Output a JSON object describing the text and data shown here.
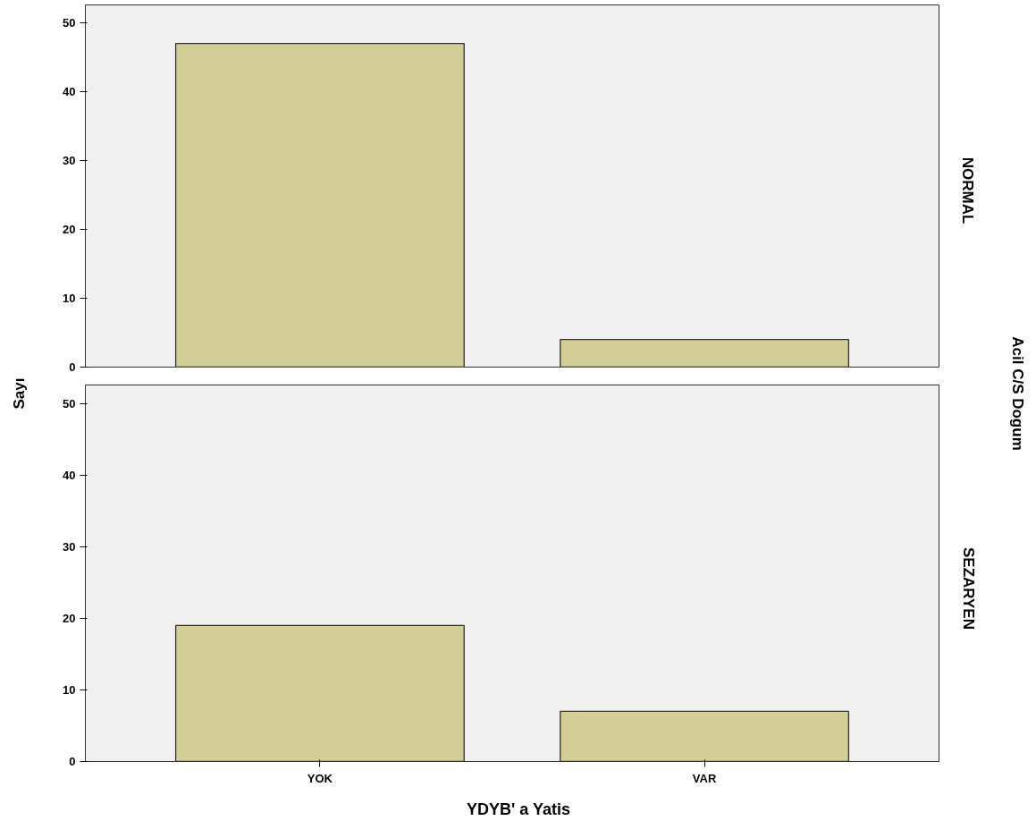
{
  "chart_data": [
    {
      "type": "bar",
      "categories": [
        null,
        null
      ],
      "values": [
        47,
        4
      ],
      "color": "#d3cd97",
      "ylim": [
        0,
        52.6
      ],
      "yticks": [
        0,
        10,
        20,
        30,
        40,
        50
      ],
      "ylabel": "Sayı",
      "y2label": "Acil C/S Dogum",
      "annotations": [
        "NORMAL"
      ],
      "grid": false,
      "tick_labels": "y"
    },
    {
      "type": "bar",
      "categories": [
        "YOK",
        "VAR"
      ],
      "values": [
        19,
        7
      ],
      "color": "#d3cd97",
      "ylim": [
        0,
        52.6
      ],
      "yticks": [
        0,
        10,
        20,
        30,
        40,
        50
      ],
      "xlabel": "YDYB' a Yatis",
      "annotations": [
        "SEZARYEN"
      ],
      "grid": false
    }
  ]
}
